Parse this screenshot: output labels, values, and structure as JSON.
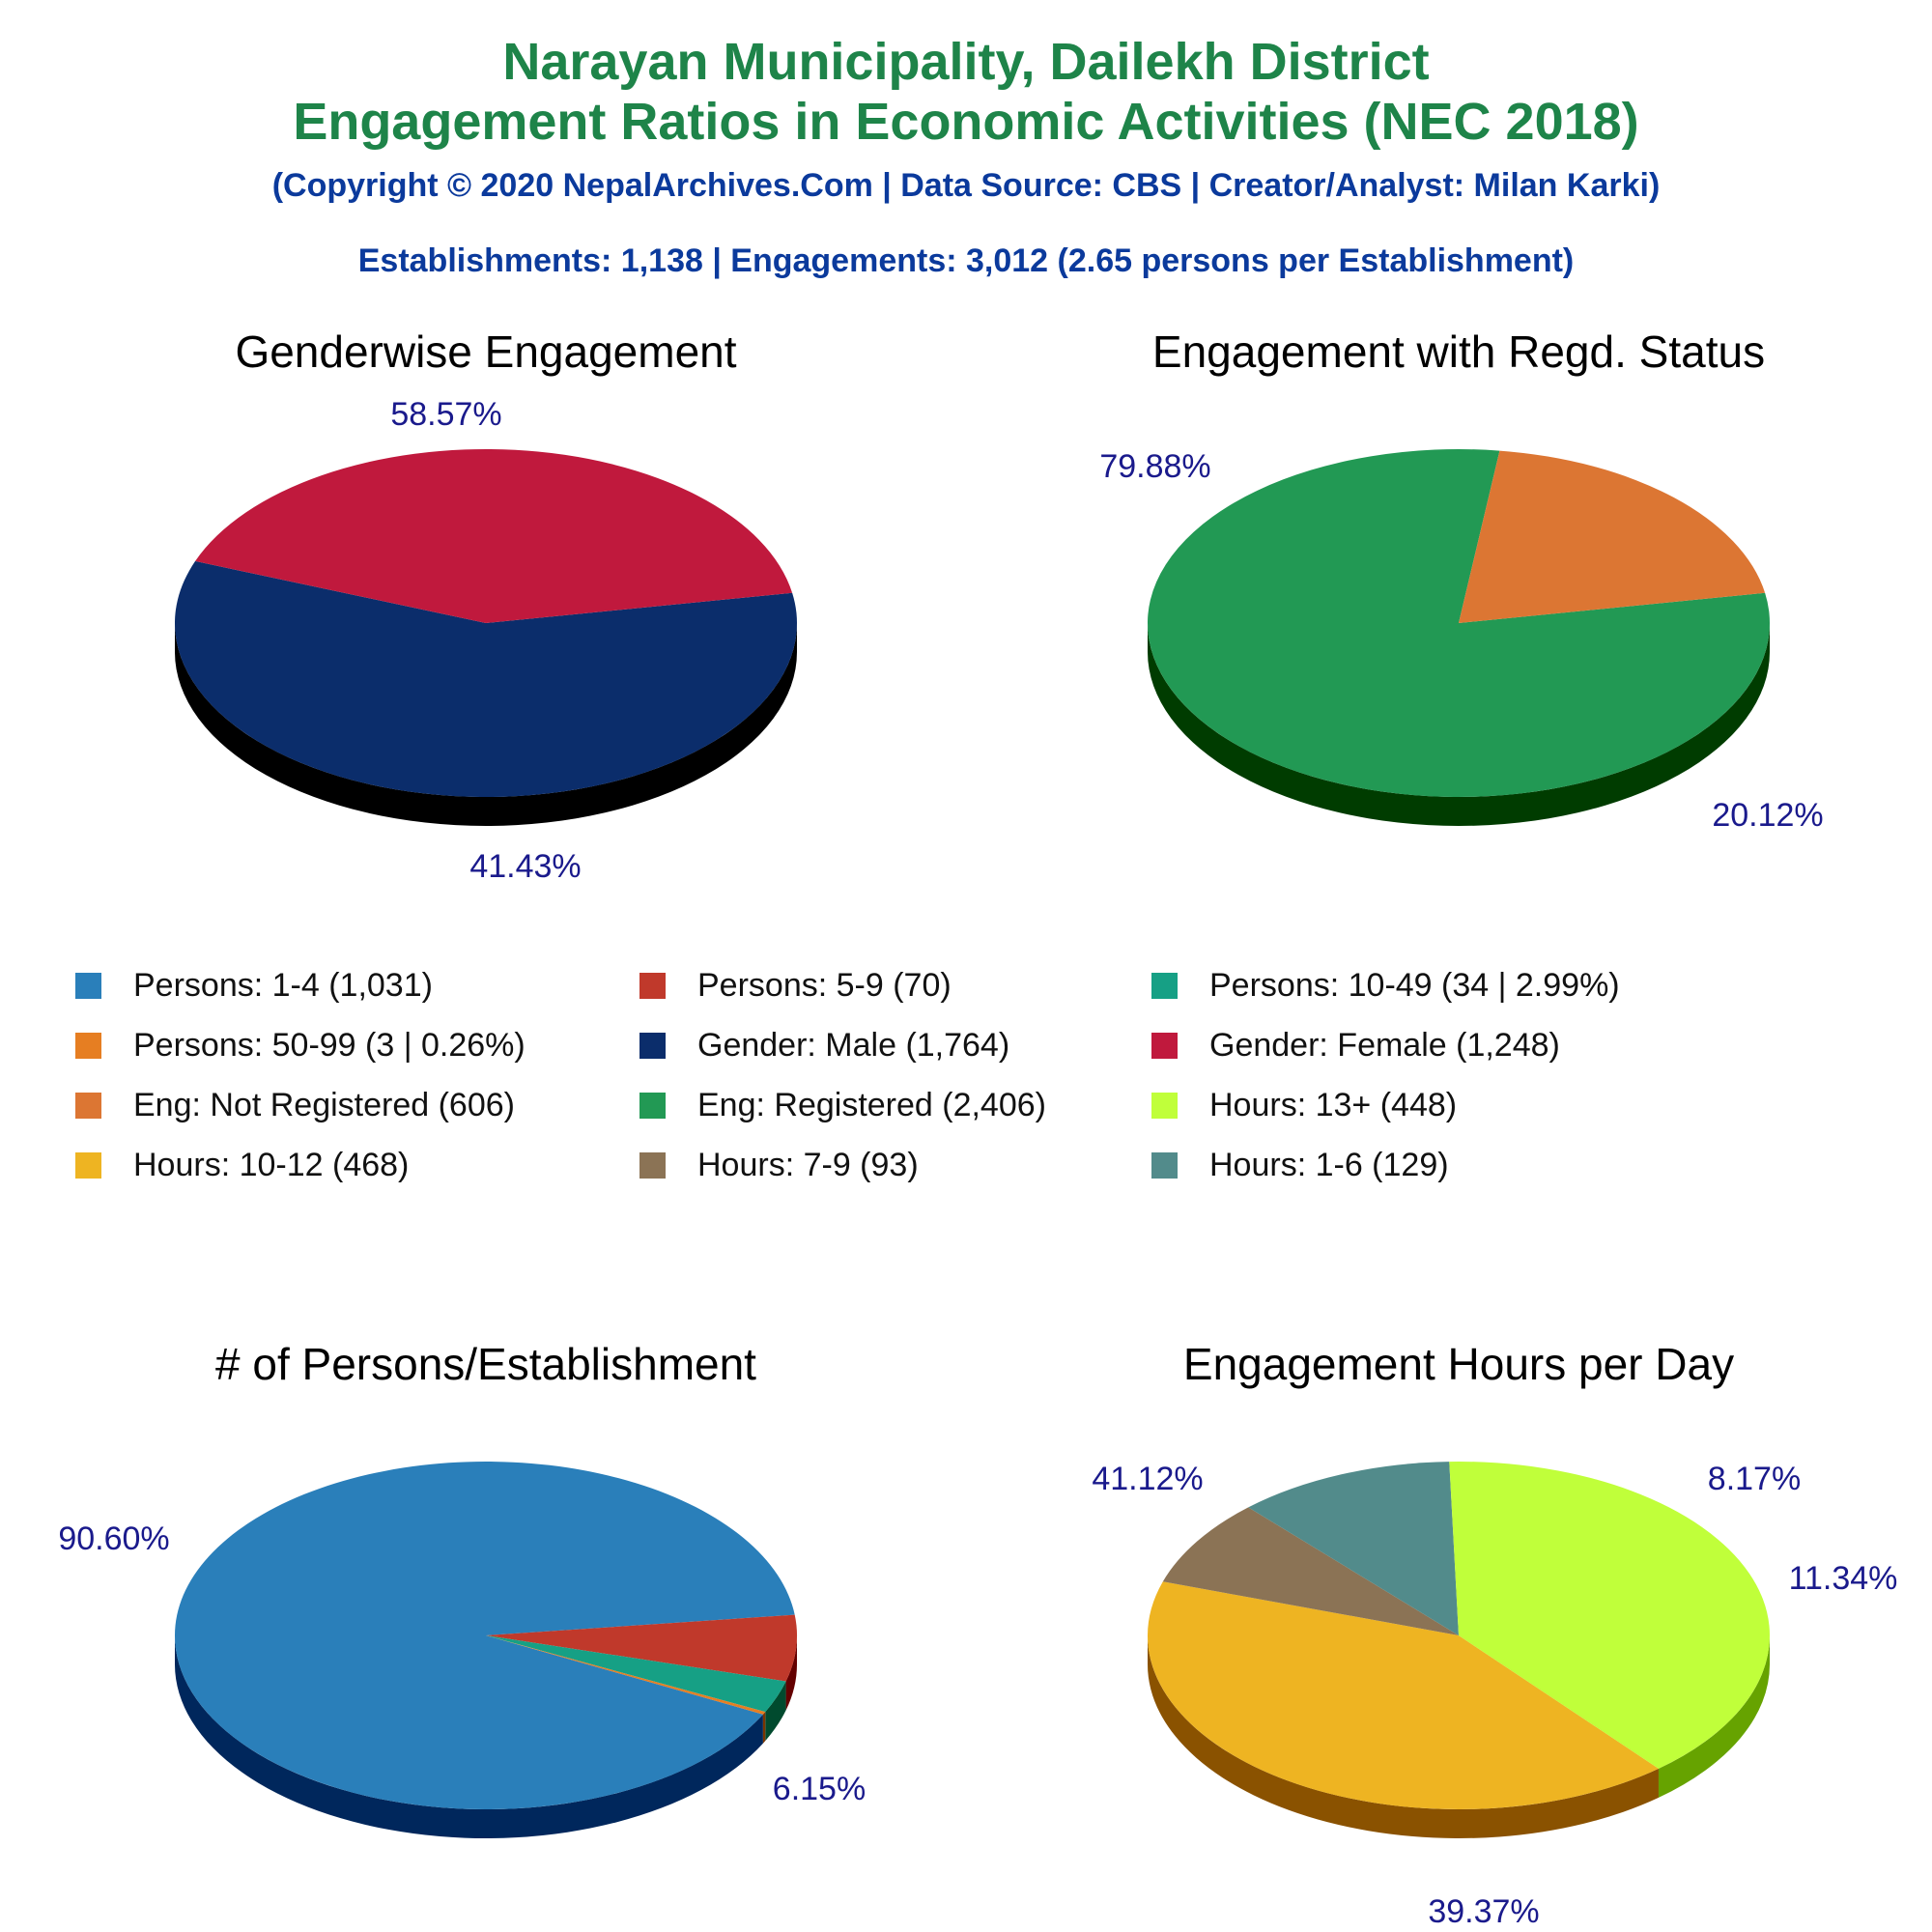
{
  "header": {
    "title_line1": "Narayan Municipality, Dailekh District",
    "title_line2": "Engagement Ratios in Economic Activities (NEC 2018)",
    "copyright": "(Copyright © 2020 NepalArchives.Com | Data Source: CBS | Creator/Analyst: Milan Karki)",
    "stats": "Establishments: 1,138 | Engagements: 3,012 (2.65 persons per Establishment)"
  },
  "legend": [
    {
      "label": "Persons: 1-4 (1,031)",
      "color": "#2a7fba"
    },
    {
      "label": "Persons: 5-9 (70)",
      "color": "#c0392b"
    },
    {
      "label": "Persons: 10-49 (34 | 2.99%)",
      "color": "#16a085"
    },
    {
      "label": "Persons: 50-99 (3 | 0.26%)",
      "color": "#e67e22"
    },
    {
      "label": "Gender: Male (1,764)",
      "color": "#0b2d6b"
    },
    {
      "label": "Gender: Female (1,248)",
      "color": "#c0193d"
    },
    {
      "label": "Eng: Not Registered (606)",
      "color": "#dc7633"
    },
    {
      "label": "Eng: Registered (2,406)",
      "color": "#229954"
    },
    {
      "label": "Hours: 13+ (448)",
      "color": "#c0ff3a"
    },
    {
      "label": "Hours: 10-12 (468)",
      "color": "#eeb422"
    },
    {
      "label": "Hours: 7-9 (93)",
      "color": "#8b7355"
    },
    {
      "label": "Hours: 1-6 (129)",
      "color": "#528b8b"
    }
  ],
  "chart_data": [
    {
      "type": "pie",
      "title": "Genderwise Engagement",
      "slices": [
        {
          "value": 58.57,
          "label": "58.57%",
          "color": "#0b2d6b",
          "side_color": "#000000"
        },
        {
          "value": 41.43,
          "label": "41.43%",
          "color": "#c0193d",
          "side_color": "#640000"
        }
      ]
    },
    {
      "type": "pie",
      "title": "Engagement with Regd. Status",
      "slices": [
        {
          "value": 79.88,
          "label": "79.88%",
          "color": "#229954",
          "side_color": "#003c00"
        },
        {
          "value": 20.12,
          "label": "20.12%",
          "color": "#dc7633",
          "side_color": "#7a1a00"
        }
      ]
    },
    {
      "type": "pie",
      "title": "# of Persons/Establishment",
      "slices": [
        {
          "value": 90.6,
          "label": "90.60%",
          "color": "#2a7fba",
          "side_color": "#00275c"
        },
        {
          "value": 6.15,
          "label": "6.15%",
          "color": "#c0392b",
          "side_color": "#640000"
        },
        {
          "value": 2.99,
          "label": "",
          "color": "#16a085",
          "side_color": "#004a2e"
        },
        {
          "value": 0.26,
          "label": "",
          "color": "#e67e22",
          "side_color": "#7a3500"
        }
      ]
    },
    {
      "type": "pie",
      "title": "Engagement Hours per Day",
      "slices": [
        {
          "value": 41.12,
          "label": "41.12%",
          "color": "#eeb422",
          "side_color": "#8a5200"
        },
        {
          "value": 8.17,
          "label": "8.17%",
          "color": "#8b7355",
          "side_color": "#3a2a10"
        },
        {
          "value": 11.34,
          "label": "11.34%",
          "color": "#528b8b",
          "side_color": "#0d3a3a"
        },
        {
          "value": 39.37,
          "label": "39.37%",
          "color": "#c0ff3a",
          "side_color": "#66a300"
        }
      ]
    }
  ]
}
